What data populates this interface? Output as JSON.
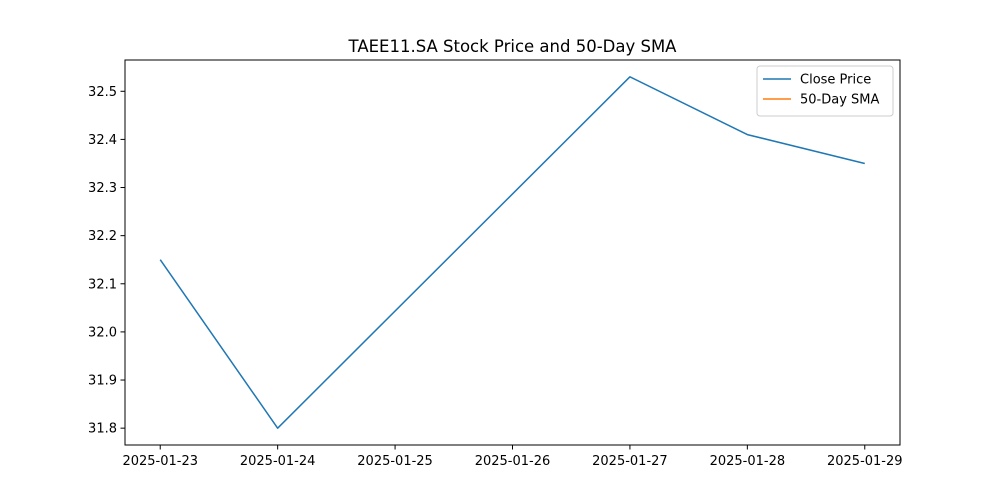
{
  "chart_data": {
    "type": "line",
    "title": "TAEE11.SA Stock Price and 50-Day SMA",
    "xlabel": "",
    "ylabel": "",
    "x": [
      "2025-01-23",
      "2025-01-24",
      "2025-01-25",
      "2025-01-26",
      "2025-01-27",
      "2025-01-28",
      "2025-01-29"
    ],
    "x_ticks": [
      "2025-01-23",
      "2025-01-24",
      "2025-01-25",
      "2025-01-26",
      "2025-01-27",
      "2025-01-28",
      "2025-01-29"
    ],
    "y_ticks": [
      31.8,
      31.9,
      32.0,
      32.1,
      32.2,
      32.3,
      32.4,
      32.5
    ],
    "ylim": [
      31.765,
      32.565
    ],
    "grid": false,
    "legend_position": "top-right",
    "series": [
      {
        "name": "Close Price",
        "color": "#1f77b4",
        "points": [
          {
            "x": "2025-01-23",
            "y": 32.15
          },
          {
            "x": "2025-01-24",
            "y": 31.8
          },
          {
            "x": "2025-01-27",
            "y": 32.53
          },
          {
            "x": "2025-01-28",
            "y": 32.41
          },
          {
            "x": "2025-01-29",
            "y": 32.35
          }
        ]
      },
      {
        "name": "50-Day SMA",
        "color": "#ff7f0e",
        "points": []
      }
    ]
  }
}
